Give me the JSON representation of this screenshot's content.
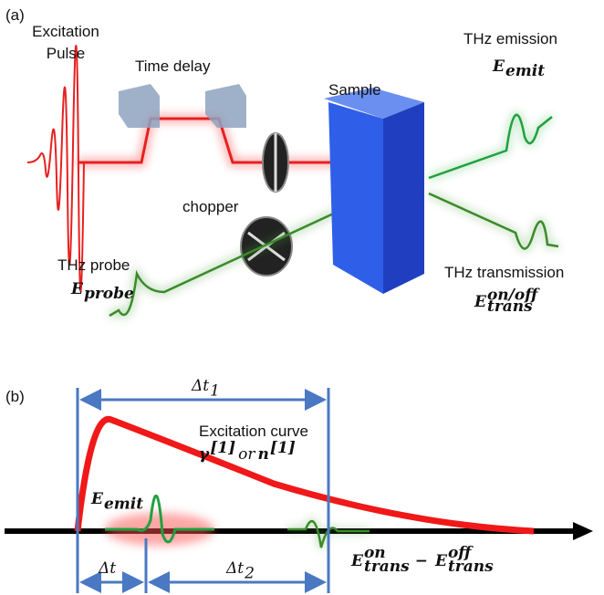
{
  "panel_a": {
    "label": "(a)",
    "excitation_pulse": [
      "Excitation",
      "Pulse"
    ],
    "time_delay": "Time delay",
    "sample": "Sample",
    "thz_emission": "THz emission",
    "e_emit": {
      "base": "E",
      "sub": "emit"
    },
    "chopper": "chopper",
    "thz_probe": "THz probe",
    "e_probe": {
      "base": "E",
      "sub": "probe"
    },
    "thz_transmission": "THz transmission",
    "e_trans": {
      "base": "E",
      "sub": "trans",
      "sup": "on/off"
    }
  },
  "panel_b": {
    "label": "(b)",
    "dt1": {
      "base": "Δt",
      "sub": "1"
    },
    "excitation_curve": "Excitation curve",
    "gamma_term": {
      "base": "γ",
      "sup": "[1]"
    },
    "or": "or",
    "n_term": {
      "base": "n",
      "sup": "[1]"
    },
    "e_emit": {
      "base": "E",
      "sub": "emit"
    },
    "dt": {
      "base": "Δt"
    },
    "dt2": {
      "base": "Δt",
      "sub": "2"
    },
    "e_on": {
      "base": "E",
      "sub": "trans",
      "sup": "on"
    },
    "minus": "−",
    "e_off": {
      "base": "E",
      "sub": "trans",
      "sup": "off"
    }
  }
}
